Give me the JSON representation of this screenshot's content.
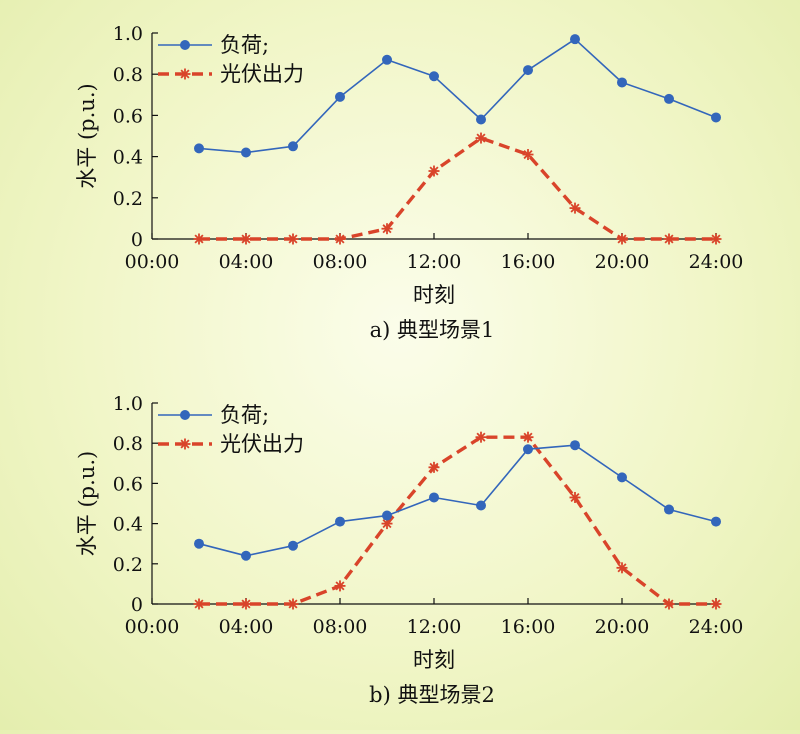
{
  "chart_data": [
    {
      "type": "line",
      "caption": "a) 典型场景1",
      "xlabel": "时刻",
      "ylabel": "水平 (p.u.)",
      "x_ticks": [
        "00:00",
        "04:00",
        "08:00",
        "12:00",
        "16:00",
        "20:00",
        "24:00"
      ],
      "y_ticks": [
        "0",
        "0.2",
        "0.4",
        "0.6",
        "0.8",
        "1.0"
      ],
      "xlim": [
        0,
        24
      ],
      "ylim": [
        0,
        1.0
      ],
      "legend_position": "top-left",
      "x": [
        2,
        4,
        6,
        8,
        10,
        12,
        14,
        16,
        18,
        20,
        22,
        24
      ],
      "series": [
        {
          "name": "负荷;",
          "color": "#3366bb",
          "marker": "circle",
          "style": "solid",
          "values": [
            0.44,
            0.42,
            0.45,
            0.69,
            0.87,
            0.79,
            0.58,
            0.82,
            0.97,
            0.76,
            0.68,
            0.59
          ]
        },
        {
          "name": "光伏出力",
          "color": "#d9442a",
          "marker": "asterisk",
          "style": "dashed",
          "values": [
            0.0,
            0.0,
            0.0,
            0.0,
            0.05,
            0.33,
            0.49,
            0.41,
            0.15,
            0.0,
            0.0,
            0.0
          ]
        }
      ]
    },
    {
      "type": "line",
      "caption": "b) 典型场景2",
      "xlabel": "时刻",
      "ylabel": "水平 (p.u.)",
      "x_ticks": [
        "00:00",
        "04:00",
        "08:00",
        "12:00",
        "16:00",
        "20:00",
        "24:00"
      ],
      "y_ticks": [
        "0",
        "0.2",
        "0.4",
        "0.6",
        "0.8",
        "1.0"
      ],
      "xlim": [
        0,
        24
      ],
      "ylim": [
        0,
        1.0
      ],
      "legend_position": "top-left",
      "x": [
        2,
        4,
        6,
        8,
        10,
        12,
        14,
        16,
        18,
        20,
        22,
        24
      ],
      "series": [
        {
          "name": "负荷;",
          "color": "#3366bb",
          "marker": "circle",
          "style": "solid",
          "values": [
            0.3,
            0.24,
            0.29,
            0.41,
            0.44,
            0.53,
            0.49,
            0.77,
            0.79,
            0.63,
            0.47,
            0.41
          ]
        },
        {
          "name": "光伏出力",
          "color": "#d9442a",
          "marker": "asterisk",
          "style": "dashed",
          "values": [
            0.0,
            0.0,
            0.0,
            0.09,
            0.4,
            0.68,
            0.83,
            0.83,
            0.53,
            0.18,
            0.0,
            0.0
          ]
        }
      ]
    }
  ]
}
